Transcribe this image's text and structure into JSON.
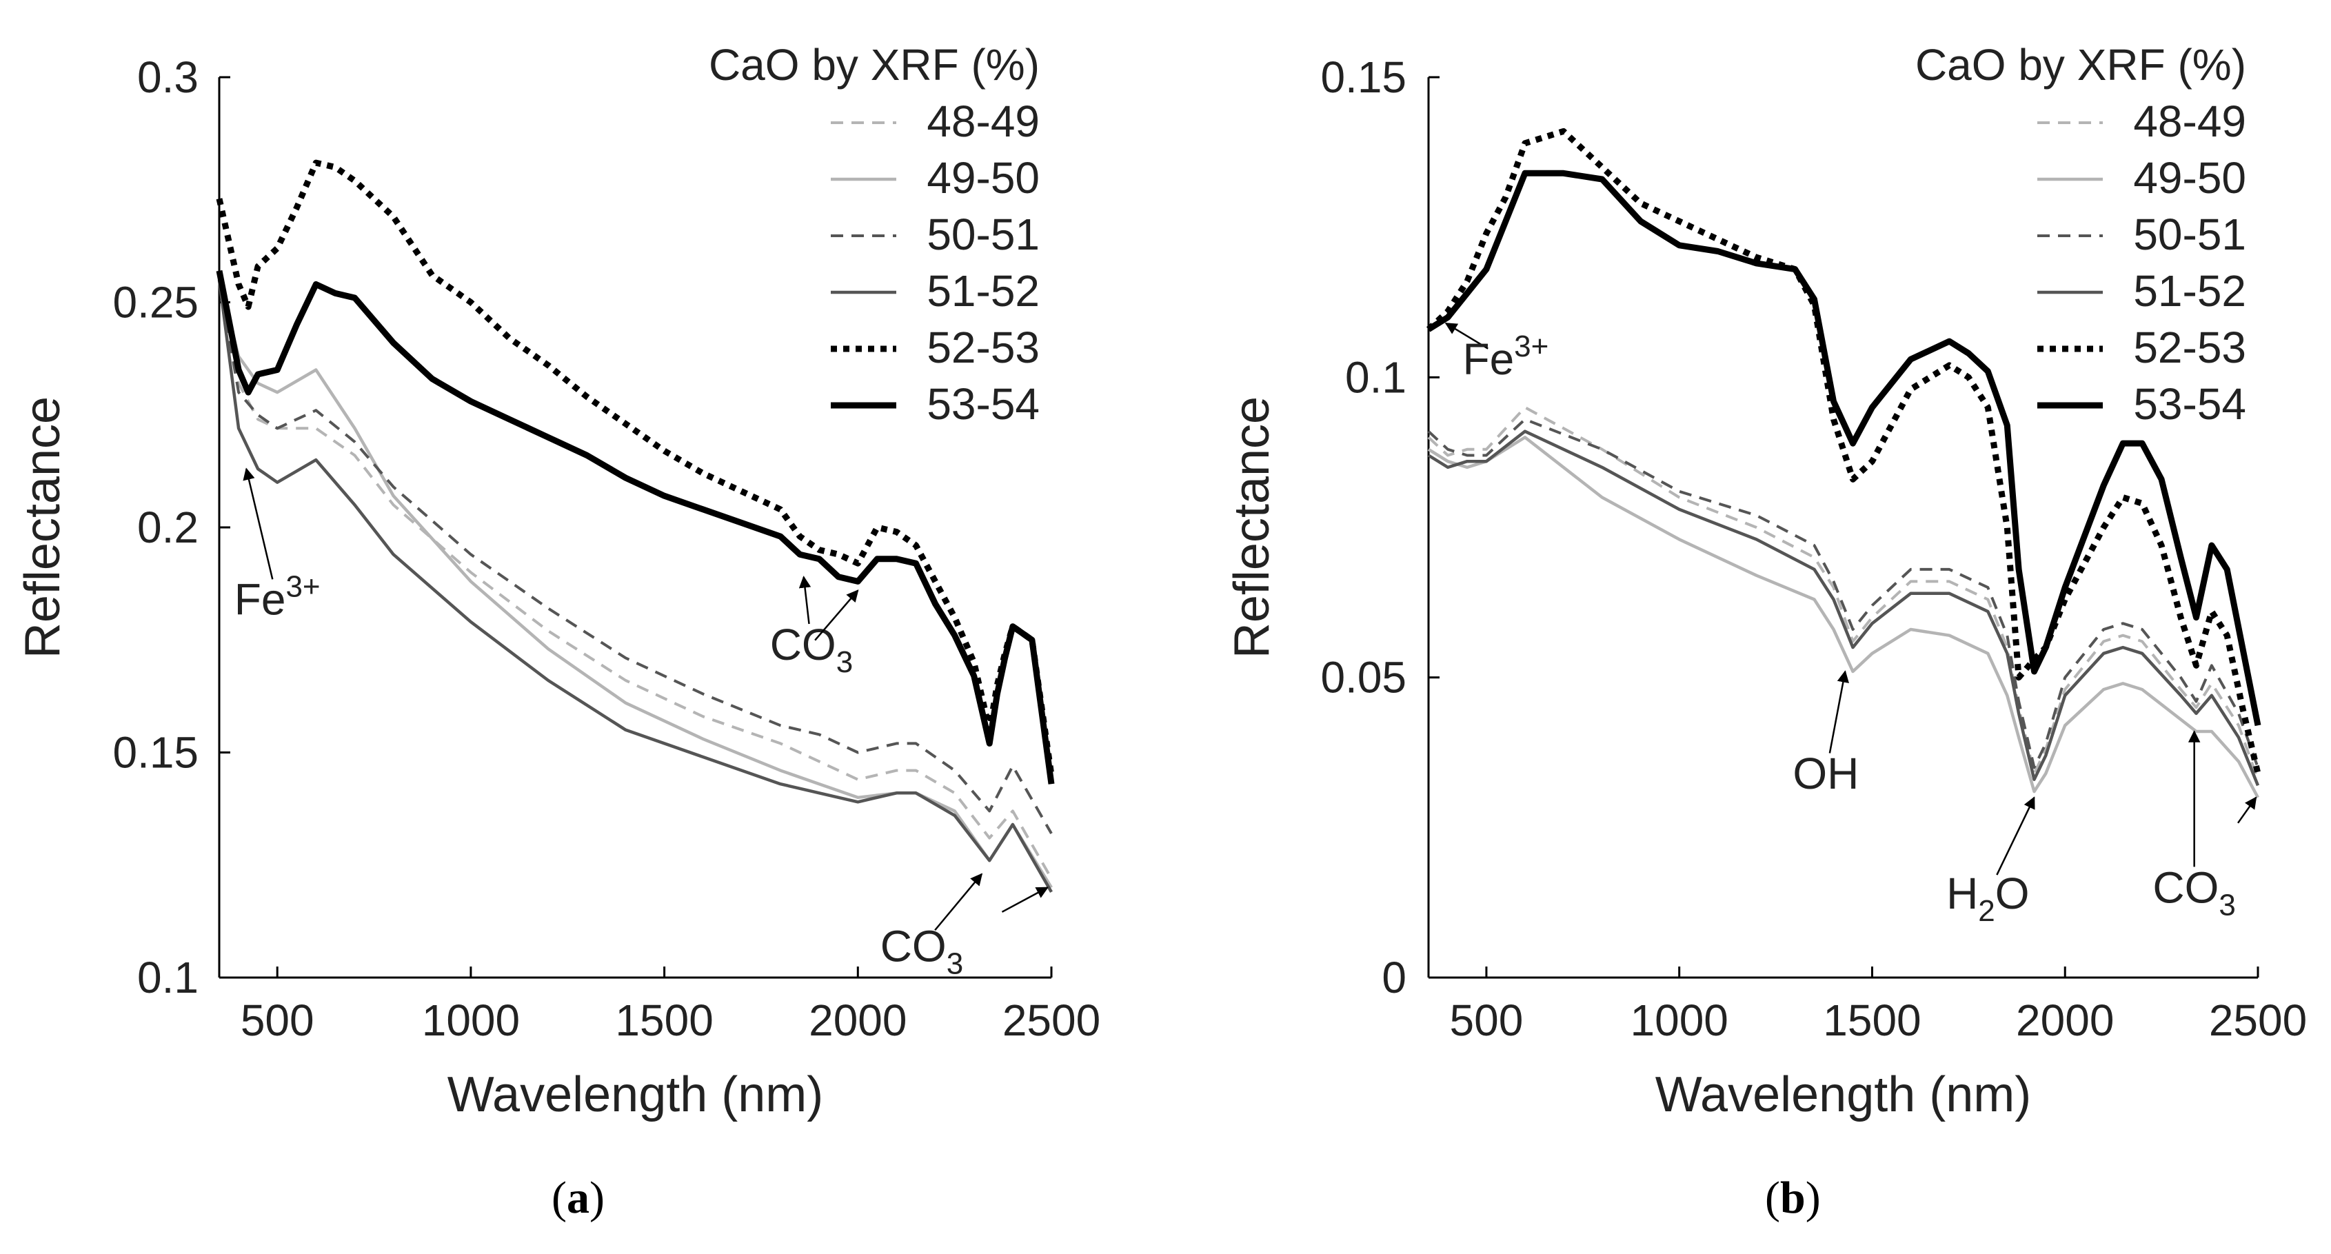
{
  "chart_data": [
    {
      "type": "line",
      "panel": "(a)",
      "panel_letter": "a",
      "xlabel": "Wavelength (nm)",
      "ylabel": "Reflectance",
      "xlim": [
        350,
        2500
      ],
      "ylim": [
        0.1,
        0.3
      ],
      "xticks": [
        500,
        1000,
        1500,
        2000,
        2500
      ],
      "yticks": [
        0.1,
        0.15,
        0.2,
        0.25,
        0.3
      ],
      "ytick_labels": [
        "0.1",
        "0.15",
        "0.2",
        "0.25",
        "0.3"
      ],
      "legend_title": "CaO by XRF (%)",
      "legend_position": "top-right",
      "grid": false,
      "series": [
        {
          "name": "48-49",
          "color": "#b4b4b4",
          "style": "dashed",
          "x": [
            350,
            400,
            450,
            500,
            600,
            700,
            800,
            1000,
            1200,
            1400,
            1600,
            1800,
            1900,
            2000,
            2100,
            2150,
            2250,
            2340,
            2400,
            2500
          ],
          "y": [
            0.255,
            0.232,
            0.224,
            0.222,
            0.222,
            0.216,
            0.205,
            0.19,
            0.177,
            0.166,
            0.158,
            0.152,
            0.148,
            0.144,
            0.146,
            0.146,
            0.141,
            0.131,
            0.137,
            0.122
          ]
        },
        {
          "name": "49-50",
          "color": "#b4b4b4",
          "style": "solid",
          "x": [
            350,
            400,
            450,
            500,
            600,
            700,
            800,
            1000,
            1200,
            1400,
            1600,
            1800,
            1900,
            2000,
            2100,
            2150,
            2250,
            2340,
            2400,
            2500
          ],
          "y": [
            0.255,
            0.238,
            0.232,
            0.23,
            0.235,
            0.222,
            0.207,
            0.188,
            0.173,
            0.161,
            0.153,
            0.146,
            0.143,
            0.14,
            0.141,
            0.141,
            0.137,
            0.126,
            0.134,
            0.12
          ]
        },
        {
          "name": "50-51",
          "color": "#555555",
          "style": "dashed",
          "x": [
            350,
            400,
            450,
            500,
            600,
            700,
            800,
            1000,
            1200,
            1400,
            1600,
            1800,
            1900,
            2000,
            2100,
            2150,
            2250,
            2340,
            2400,
            2500
          ],
          "y": [
            0.255,
            0.23,
            0.225,
            0.222,
            0.226,
            0.219,
            0.209,
            0.194,
            0.182,
            0.171,
            0.163,
            0.156,
            0.154,
            0.15,
            0.152,
            0.152,
            0.146,
            0.137,
            0.147,
            0.132
          ]
        },
        {
          "name": "51-52",
          "color": "#555555",
          "style": "solid",
          "x": [
            350,
            400,
            450,
            500,
            600,
            700,
            800,
            1000,
            1200,
            1400,
            1600,
            1800,
            1900,
            2000,
            2100,
            2150,
            2250,
            2340,
            2400,
            2500
          ],
          "y": [
            0.255,
            0.222,
            0.213,
            0.21,
            0.215,
            0.205,
            0.194,
            0.179,
            0.166,
            0.155,
            0.149,
            0.143,
            0.141,
            0.139,
            0.141,
            0.141,
            0.136,
            0.126,
            0.134,
            0.119
          ]
        },
        {
          "name": "52-53",
          "color": "#000000",
          "style": "dotted",
          "x": [
            350,
            400,
            425,
            450,
            500,
            550,
            600,
            650,
            700,
            800,
            900,
            1000,
            1100,
            1200,
            1300,
            1400,
            1500,
            1600,
            1700,
            1800,
            1850,
            1900,
            1950,
            2000,
            2050,
            2100,
            2150,
            2200,
            2250,
            2300,
            2340,
            2360,
            2380,
            2400,
            2450,
            2500
          ],
          "y": [
            0.273,
            0.254,
            0.249,
            0.258,
            0.262,
            0.271,
            0.281,
            0.28,
            0.277,
            0.269,
            0.256,
            0.25,
            0.242,
            0.236,
            0.229,
            0.223,
            0.217,
            0.212,
            0.208,
            0.204,
            0.198,
            0.195,
            0.194,
            0.192,
            0.2,
            0.199,
            0.196,
            0.188,
            0.18,
            0.17,
            0.155,
            0.165,
            0.172,
            0.178,
            0.175,
            0.145
          ]
        },
        {
          "name": "53-54",
          "color": "#000000",
          "style": "solid-thick",
          "x": [
            350,
            400,
            425,
            450,
            500,
            550,
            600,
            650,
            700,
            800,
            900,
            1000,
            1100,
            1200,
            1300,
            1400,
            1500,
            1600,
            1700,
            1800,
            1850,
            1900,
            1950,
            2000,
            2050,
            2100,
            2150,
            2200,
            2250,
            2300,
            2340,
            2360,
            2380,
            2400,
            2450,
            2500
          ],
          "y": [
            0.257,
            0.235,
            0.23,
            0.234,
            0.235,
            0.245,
            0.254,
            0.252,
            0.251,
            0.241,
            0.233,
            0.228,
            0.224,
            0.22,
            0.216,
            0.211,
            0.207,
            0.204,
            0.201,
            0.198,
            0.194,
            0.193,
            0.189,
            0.188,
            0.193,
            0.193,
            0.192,
            0.183,
            0.176,
            0.167,
            0.152,
            0.163,
            0.171,
            0.178,
            0.175,
            0.143
          ]
        }
      ],
      "annotations": [
        {
          "label": "Fe",
          "sup": "3+",
          "sub": "",
          "text_at": [
            500,
            0.184
          ],
          "arrow_to": [
            420,
            0.213
          ]
        },
        {
          "label": "CO",
          "sup": "",
          "sub": "3",
          "text_at": [
            1880,
            0.174
          ],
          "arrow_to": [
            1860,
            0.189
          ]
        },
        {
          "label": "",
          "sup": "",
          "sub": "",
          "text_at": [
            1880,
            0.174
          ],
          "arrow_to": [
            2000,
            0.186
          ]
        },
        {
          "label": "CO",
          "sup": "",
          "sub": "3",
          "text_at": [
            2165,
            0.107
          ],
          "arrow_to": [
            2320,
            0.123
          ]
        },
        {
          "label": "",
          "sup": "",
          "sub": "",
          "text_at": [
            2360,
            0.114
          ],
          "arrow_to": [
            2490,
            0.12
          ]
        }
      ]
    },
    {
      "type": "line",
      "panel": "(b)",
      "panel_letter": "b",
      "xlabel": "Wavelength (nm)",
      "ylabel": "Reflectance",
      "xlim": [
        350,
        2500
      ],
      "ylim": [
        0,
        0.15
      ],
      "xticks": [
        500,
        1000,
        1500,
        2000,
        2500
      ],
      "yticks": [
        0,
        0.05,
        0.1,
        0.15
      ],
      "ytick_labels": [
        "0",
        "0.05",
        "0.1",
        "0.15"
      ],
      "legend_title": "CaO by XRF (%)",
      "legend_position": "top-right",
      "grid": false,
      "series": [
        {
          "name": "48-49",
          "color": "#b4b4b4",
          "style": "dashed",
          "x": [
            350,
            400,
            450,
            500,
            600,
            800,
            1000,
            1200,
            1350,
            1400,
            1450,
            1500,
            1600,
            1700,
            1800,
            1850,
            1880,
            1920,
            1950,
            2000,
            2100,
            2150,
            2200,
            2300,
            2340,
            2380,
            2450,
            2500
          ],
          "y": [
            0.09,
            0.087,
            0.088,
            0.088,
            0.095,
            0.088,
            0.08,
            0.075,
            0.07,
            0.065,
            0.056,
            0.06,
            0.066,
            0.066,
            0.063,
            0.055,
            0.045,
            0.034,
            0.038,
            0.048,
            0.056,
            0.057,
            0.056,
            0.048,
            0.045,
            0.049,
            0.042,
            0.033
          ]
        },
        {
          "name": "49-50",
          "color": "#b4b4b4",
          "style": "solid",
          "x": [
            350,
            400,
            450,
            500,
            600,
            800,
            1000,
            1200,
            1350,
            1400,
            1450,
            1500,
            1600,
            1700,
            1800,
            1850,
            1880,
            1920,
            1950,
            2000,
            2100,
            2150,
            2200,
            2300,
            2340,
            2380,
            2450,
            2500
          ],
          "y": [
            0.088,
            0.086,
            0.085,
            0.086,
            0.09,
            0.08,
            0.073,
            0.067,
            0.063,
            0.058,
            0.051,
            0.054,
            0.058,
            0.057,
            0.054,
            0.047,
            0.04,
            0.031,
            0.034,
            0.042,
            0.048,
            0.049,
            0.048,
            0.043,
            0.041,
            0.041,
            0.036,
            0.03
          ]
        },
        {
          "name": "50-51",
          "color": "#555555",
          "style": "dashed",
          "x": [
            350,
            400,
            450,
            500,
            600,
            800,
            1000,
            1200,
            1350,
            1400,
            1450,
            1500,
            1600,
            1700,
            1800,
            1850,
            1880,
            1920,
            1950,
            2000,
            2100,
            2150,
            2200,
            2300,
            2340,
            2380,
            2450,
            2500
          ],
          "y": [
            0.091,
            0.088,
            0.087,
            0.087,
            0.093,
            0.088,
            0.081,
            0.077,
            0.072,
            0.066,
            0.058,
            0.062,
            0.068,
            0.068,
            0.065,
            0.057,
            0.046,
            0.035,
            0.039,
            0.05,
            0.058,
            0.059,
            0.058,
            0.05,
            0.046,
            0.052,
            0.044,
            0.035
          ]
        },
        {
          "name": "51-52",
          "color": "#555555",
          "style": "solid",
          "x": [
            350,
            400,
            450,
            500,
            600,
            800,
            1000,
            1200,
            1350,
            1400,
            1450,
            1500,
            1600,
            1700,
            1800,
            1850,
            1880,
            1920,
            1950,
            2000,
            2100,
            2150,
            2200,
            2300,
            2340,
            2380,
            2450,
            2500
          ],
          "y": [
            0.087,
            0.085,
            0.086,
            0.086,
            0.091,
            0.085,
            0.078,
            0.073,
            0.068,
            0.063,
            0.055,
            0.059,
            0.064,
            0.064,
            0.061,
            0.054,
            0.044,
            0.033,
            0.037,
            0.047,
            0.054,
            0.055,
            0.054,
            0.047,
            0.044,
            0.047,
            0.04,
            0.032
          ]
        },
        {
          "name": "52-53",
          "color": "#000000",
          "style": "dotted",
          "x": [
            350,
            400,
            450,
            500,
            550,
            600,
            700,
            800,
            900,
            1000,
            1100,
            1200,
            1300,
            1350,
            1400,
            1450,
            1500,
            1600,
            1700,
            1750,
            1800,
            1850,
            1880,
            1920,
            1950,
            2000,
            2100,
            2150,
            2200,
            2250,
            2300,
            2340,
            2380,
            2420,
            2460,
            2500
          ],
          "y": [
            0.108,
            0.111,
            0.116,
            0.124,
            0.13,
            0.139,
            0.141,
            0.135,
            0.129,
            0.126,
            0.123,
            0.12,
            0.118,
            0.112,
            0.093,
            0.083,
            0.086,
            0.098,
            0.102,
            0.1,
            0.095,
            0.075,
            0.05,
            0.053,
            0.055,
            0.063,
            0.075,
            0.08,
            0.079,
            0.072,
            0.06,
            0.052,
            0.061,
            0.057,
            0.045,
            0.034
          ]
        },
        {
          "name": "53-54",
          "color": "#000000",
          "style": "solid-thick",
          "x": [
            350,
            400,
            450,
            500,
            550,
            600,
            700,
            800,
            900,
            1000,
            1100,
            1200,
            1300,
            1350,
            1400,
            1450,
            1500,
            1600,
            1700,
            1750,
            1800,
            1850,
            1880,
            1920,
            1950,
            2000,
            2100,
            2150,
            2200,
            2250,
            2300,
            2340,
            2380,
            2420,
            2460,
            2500
          ],
          "y": [
            0.108,
            0.11,
            0.114,
            0.118,
            0.126,
            0.134,
            0.134,
            0.133,
            0.126,
            0.122,
            0.121,
            0.119,
            0.118,
            0.113,
            0.096,
            0.089,
            0.095,
            0.103,
            0.106,
            0.104,
            0.101,
            0.092,
            0.068,
            0.051,
            0.055,
            0.065,
            0.082,
            0.089,
            0.089,
            0.083,
            0.07,
            0.06,
            0.072,
            0.068,
            0.055,
            0.042
          ]
        }
      ],
      "annotations": [
        {
          "label": "Fe",
          "sup": "3+",
          "sub": "",
          "text_at": [
            550,
            0.103
          ],
          "arrow_to": [
            395,
            0.109
          ]
        },
        {
          "label": "OH",
          "sup": "",
          "sub": "",
          "text_at": [
            1380,
            0.034
          ],
          "arrow_to": [
            1430,
            0.051
          ]
        },
        {
          "label": "H",
          "sup": "",
          "sub": "2",
          "after": "O",
          "text_at": [
            1800,
            0.014
          ],
          "arrow_to": [
            1920,
            0.03
          ]
        },
        {
          "label": "CO",
          "sup": "",
          "sub": "3",
          "text_at": [
            2335,
            0.015
          ],
          "arrow_to": [
            2335,
            0.041
          ]
        },
        {
          "label": "",
          "sup": "",
          "sub": "",
          "text_at": [
            2440,
            0.025
          ],
          "arrow_to": [
            2495,
            0.03
          ]
        }
      ]
    }
  ]
}
